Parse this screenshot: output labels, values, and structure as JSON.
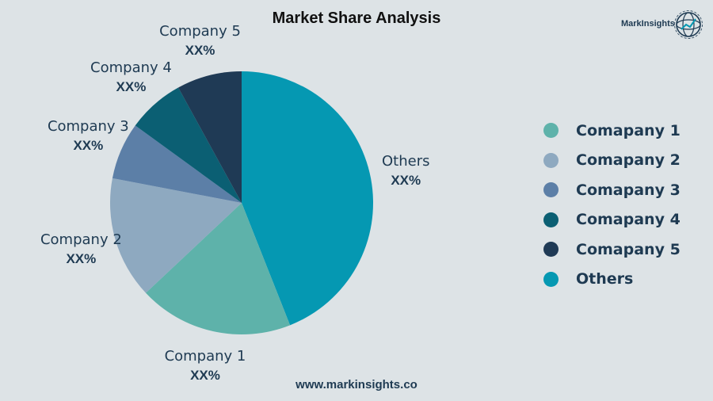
{
  "chart_data": {
    "type": "pie",
    "title": "Market Share Analysis",
    "slices": [
      {
        "name": "Others",
        "value_label": "XX%",
        "value": 44,
        "color": "#0598b2"
      },
      {
        "name": "Company 1",
        "value_label": "XX%",
        "value": 19,
        "color": "#5eb2aa"
      },
      {
        "name": "Company 2",
        "value_label": "XX%",
        "value": 15,
        "color": "#8ea9c0"
      },
      {
        "name": "Company 3",
        "value_label": "XX%",
        "value": 7,
        "color": "#5c7fa7"
      },
      {
        "name": "Company 4",
        "value_label": "XX%",
        "value": 7,
        "color": "#0b5f73"
      },
      {
        "name": "Company 5",
        "value_label": "XX%",
        "value": 8,
        "color": "#1f3a55"
      }
    ],
    "legend": {
      "position": "right",
      "items": [
        {
          "label": "Comapany 1",
          "color": "#5eb2aa"
        },
        {
          "label": "Comapany 2",
          "color": "#8ea9c0"
        },
        {
          "label": "Comapany 3",
          "color": "#5c7fa7"
        },
        {
          "label": "Comapany 4",
          "color": "#0b5f73"
        },
        {
          "label": "Comapany 5",
          "color": "#1f3a55"
        },
        {
          "label": "Others",
          "color": "#0598b2"
        }
      ]
    }
  },
  "brand": {
    "name": "MarkInsights",
    "logo_icon": "globe-chart-icon"
  },
  "footer": {
    "url": "www.markinsights.co"
  }
}
